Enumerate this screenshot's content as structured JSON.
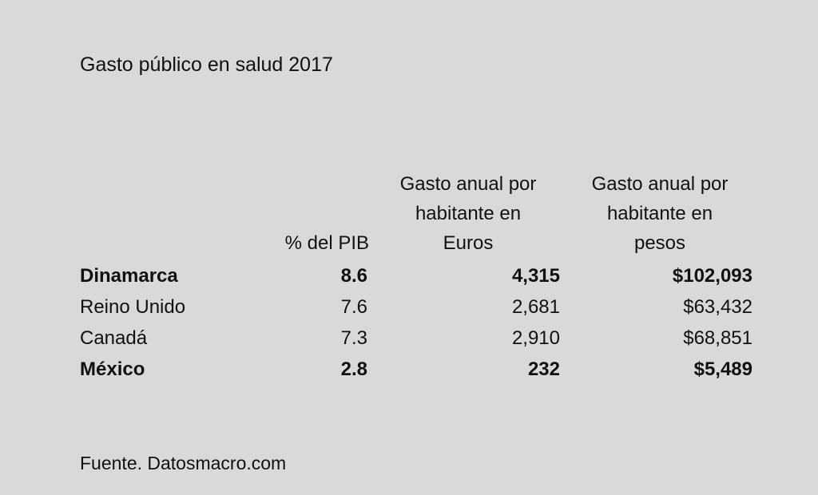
{
  "title": "Gasto público en salud 2017",
  "headers": {
    "pib": "% del PIB",
    "euros": "Gasto anual por\nhabitante en\nEuros",
    "pesos": "Gasto anual por\nhabitante en\npesos"
  },
  "rows": [
    {
      "country": "Dinamarca",
      "pib": "8.6",
      "euros": "4,315",
      "pesos": "$102,093",
      "bold": true
    },
    {
      "country": "Reino Unido",
      "pib": "7.6",
      "euros": "2,681",
      "pesos": "$63,432",
      "bold": false
    },
    {
      "country": "Canadá",
      "pib": "7.3",
      "euros": "2,910",
      "pesos": "$68,851",
      "bold": false
    },
    {
      "country": "México",
      "pib": "2.8",
      "euros": "232",
      "pesos": "$5,489",
      "bold": true
    }
  ],
  "source": "Fuente. Datosmacro.com"
}
